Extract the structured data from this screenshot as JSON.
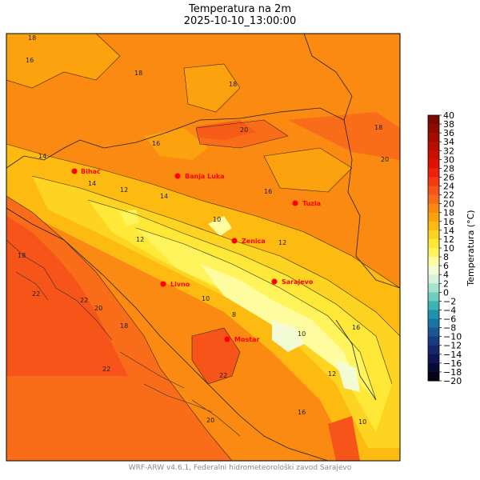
{
  "title": "Temperatura na 2m",
  "subtitle": "2025-10-10_13:00:00",
  "footer": "WRF-ARW v4.6.1, Federalni hidrometeorološki zavod Sarajevo",
  "colorbar": {
    "label": "Temperatura (°C)",
    "min": -20,
    "max": 40,
    "ticks": [
      "40",
      "38",
      "36",
      "34",
      "32",
      "30",
      "28",
      "26",
      "24",
      "22",
      "20",
      "18",
      "16",
      "14",
      "12",
      "10",
      "8",
      "6",
      "4",
      "2",
      "0",
      "−2",
      "−4",
      "−6",
      "−8",
      "−10",
      "−12",
      "−14",
      "−16",
      "−18",
      "−20"
    ],
    "colors": [
      "#7a0a00",
      "#8e0b00",
      "#a40c00",
      "#b80e00",
      "#cc1000",
      "#e01200",
      "#f0200a",
      "#f43a10",
      "#f65418",
      "#f86c1a",
      "#fa8a12",
      "#fca20e",
      "#fdbb12",
      "#fed422",
      "#ffe838",
      "#fff45c",
      "#fffca0",
      "#f2fbd4",
      "#d6f2dc",
      "#a6e3cc",
      "#6fcfbe",
      "#3ab3b2",
      "#1f93ac",
      "#1a74a0",
      "#1a5693",
      "#193a80",
      "#16266a",
      "#101652",
      "#0a0a36",
      "#040418"
    ]
  },
  "cities": [
    {
      "name": "Bihać"
    },
    {
      "name": "Banja Luka"
    },
    {
      "name": "Tuzla"
    },
    {
      "name": "Zenica"
    },
    {
      "name": "Livno"
    },
    {
      "name": "Sarajevo"
    },
    {
      "name": "Mostar"
    }
  ],
  "contour_labels": [
    "18",
    "16",
    "14",
    "12",
    "10",
    "8",
    "20",
    "22"
  ],
  "colors": {
    "city": "#ff0000",
    "warm": "#fa8a12",
    "hot": "#f65418",
    "mild": "#fdbb12",
    "cool": "#fff45c",
    "cold": "#f2fbd4"
  }
}
